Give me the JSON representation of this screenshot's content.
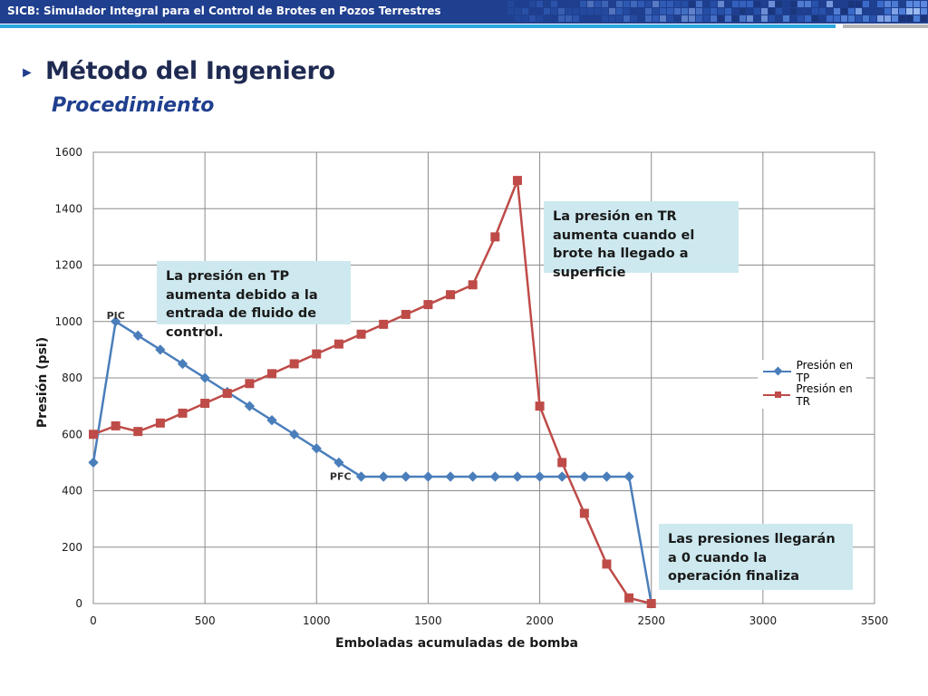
{
  "header": {
    "title": "SICB: Simulador Integral para el Control de Brotes en Pozos Terrestres"
  },
  "slide": {
    "bullet": "►",
    "title": "Método del Ingeniero",
    "subtitle": "Procedimiento"
  },
  "colors": {
    "header_bg": "#1f3f8f",
    "accent": "#2aa7e0",
    "tp": "#4a7ebb",
    "tr": "#be4b48",
    "callout_bg": "#cde9ef"
  },
  "chart_data": {
    "type": "line",
    "title": "",
    "xlabel": "Emboladas acumuladas de bomba",
    "ylabel": "Presión (psi)",
    "xlim": [
      0,
      3500
    ],
    "ylim": [
      0,
      1600
    ],
    "xticks": [
      0,
      500,
      1000,
      1500,
      2000,
      2500,
      3000,
      3500
    ],
    "yticks": [
      0,
      200,
      400,
      600,
      800,
      1000,
      1200,
      1400,
      1600
    ],
    "grid": true,
    "legend_position": "right",
    "series": [
      {
        "name": "Presión en TP",
        "color": "#4a7ebb",
        "marker": "diamond",
        "x": [
          0,
          100,
          200,
          300,
          400,
          500,
          600,
          700,
          800,
          900,
          1000,
          1100,
          1200,
          1300,
          1400,
          1500,
          1600,
          1700,
          1800,
          1900,
          2000,
          2100,
          2200,
          2300,
          2400,
          2500
        ],
        "y": [
          500,
          1000,
          950,
          900,
          850,
          800,
          750,
          700,
          650,
          600,
          550,
          500,
          450,
          450,
          450,
          450,
          450,
          450,
          450,
          450,
          450,
          450,
          450,
          450,
          450,
          0
        ]
      },
      {
        "name": "Presión en TR",
        "color": "#be4b48",
        "marker": "square",
        "x": [
          0,
          100,
          200,
          300,
          400,
          500,
          600,
          700,
          800,
          900,
          1000,
          1100,
          1200,
          1300,
          1400,
          1500,
          1600,
          1700,
          1800,
          1900,
          2000,
          2100,
          2200,
          2300,
          2400,
          2500
        ],
        "y": [
          600,
          630,
          610,
          640,
          675,
          710,
          745,
          780,
          815,
          850,
          885,
          920,
          955,
          990,
          1025,
          1060,
          1095,
          1130,
          1300,
          1500,
          700,
          500,
          320,
          140,
          20,
          0
        ]
      }
    ],
    "point_labels": [
      {
        "text": "PIC",
        "x": 100,
        "y": 1000
      },
      {
        "text": "PFC",
        "x": 1100,
        "y": 500
      }
    ],
    "callouts": [
      "La presión en TP aumenta debido a la entrada de fluido de control.",
      "La presión en TR aumenta cuando el brote ha llegado a superficie",
      "Las presiones llegarán a 0 cuando la operación finaliza"
    ]
  }
}
